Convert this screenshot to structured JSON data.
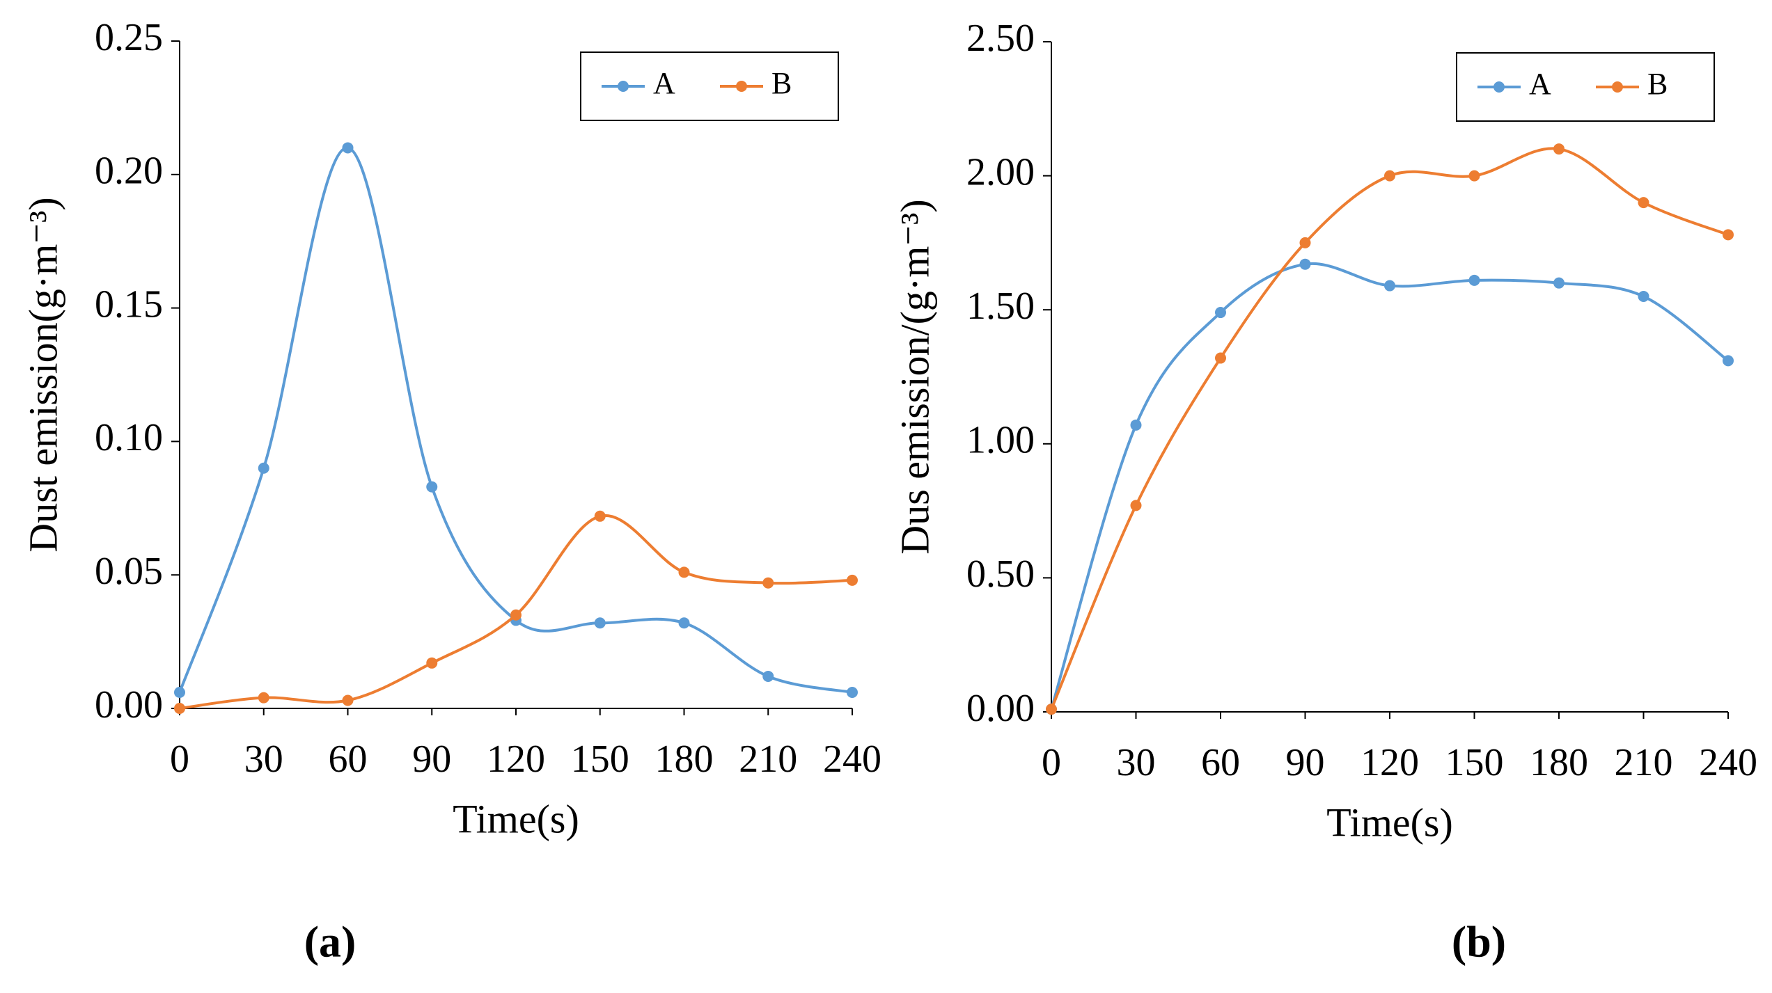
{
  "chart_data": [
    {
      "type": "line",
      "panel_label": "(a)",
      "x_label": "Time(s)",
      "y_label": "Dust emission(g·m⁻³)",
      "x": [
        0,
        30,
        60,
        90,
        120,
        150,
        180,
        210,
        240
      ],
      "series": [
        {
          "name": "A",
          "color": "#5b9bd5",
          "values": [
            0.006,
            0.09,
            0.21,
            0.083,
            0.033,
            0.032,
            0.032,
            0.012,
            0.006
          ]
        },
        {
          "name": "B",
          "color": "#ed7d31",
          "values": [
            0.0,
            0.004,
            0.003,
            0.017,
            0.035,
            0.072,
            0.051,
            0.047,
            0.048
          ]
        }
      ],
      "xlim": [
        0,
        240
      ],
      "xticks": [
        0,
        30,
        60,
        90,
        120,
        150,
        180,
        210,
        240
      ],
      "ylim": [
        0,
        0.25
      ],
      "yticks": [
        {
          "value": 0,
          "label": "0.00"
        },
        {
          "value": 0.05,
          "label": "0.05"
        },
        {
          "value": 0.1,
          "label": "0.10"
        },
        {
          "value": 0.15,
          "label": "0.15"
        },
        {
          "value": 0.2,
          "label": "0.20"
        },
        {
          "value": 0.25,
          "label": "0.25"
        }
      ],
      "smooth": true,
      "grid": false,
      "legend": "upper right"
    },
    {
      "type": "line",
      "panel_label": "(b)",
      "x_label": "Time(s)",
      "y_label": "Dus emission/(g·m⁻³)",
      "x": [
        0,
        30,
        60,
        90,
        120,
        150,
        180,
        210,
        240
      ],
      "series": [
        {
          "name": "A",
          "color": "#5b9bd5",
          "values": [
            0.01,
            1.07,
            1.49,
            1.67,
            1.59,
            1.61,
            1.6,
            1.55,
            1.31
          ]
        },
        {
          "name": "B",
          "color": "#ed7d31",
          "values": [
            0.01,
            0.77,
            1.32,
            1.75,
            2.0,
            2.0,
            2.1,
            1.9,
            1.78
          ]
        }
      ],
      "xlim": [
        0,
        240
      ],
      "xticks": [
        0,
        30,
        60,
        90,
        120,
        150,
        180,
        210,
        240
      ],
      "ylim": [
        0,
        2.5
      ],
      "yticks": [
        {
          "value": 0,
          "label": "0.00"
        },
        {
          "value": 0.5,
          "label": "0.50"
        },
        {
          "value": 1,
          "label": "1.00"
        },
        {
          "value": 1.5,
          "label": "1.50"
        },
        {
          "value": 2,
          "label": "2.00"
        },
        {
          "value": 2.5,
          "label": "2.50"
        }
      ],
      "smooth": true,
      "grid": false,
      "legend": "upper right"
    }
  ]
}
